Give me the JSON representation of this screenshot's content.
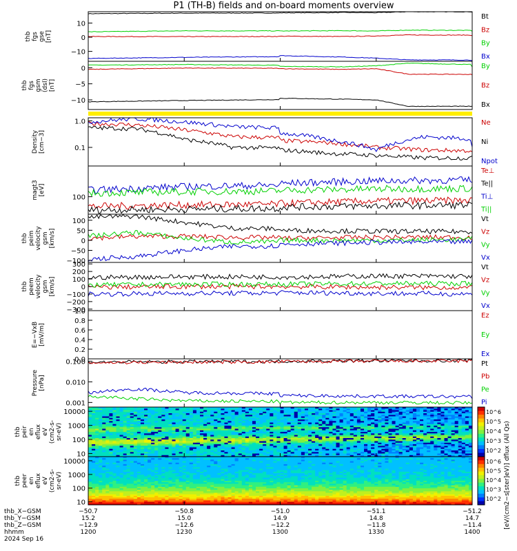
{
  "title": "P1 (TH-B) fields and on-board moments overview",
  "colors": {
    "black": "#000000",
    "red": "#cc0000",
    "green": "#00d000",
    "blue": "#0000cc",
    "yellow": "#ffee00"
  },
  "chart_data": [
    {
      "type": "line",
      "panel": "fgs-gse",
      "ylabel_lines": [
        "thb",
        "fgs",
        "gse",
        "[nT]"
      ],
      "ylim": [
        -17,
        18
      ],
      "yticks": [
        "10",
        "0",
        "−10"
      ],
      "ytick_values": [
        10,
        0,
        -10
      ],
      "series": [
        {
          "name": "Bt",
          "color": "#000000",
          "x": [
            1200,
            1230,
            1300,
            1320,
            1330,
            1340,
            1400
          ],
          "y": [
            16.6,
            17.0,
            17.2,
            17.4,
            17.3,
            18.0,
            17.9
          ]
        },
        {
          "name": "Bz",
          "color": "#cc0000",
          "x": [
            1200,
            1230,
            1300,
            1320,
            1330,
            1340,
            1400
          ],
          "y": [
            0.5,
            0.4,
            0.7,
            0.5,
            0.9,
            1.6,
            1.2
          ]
        },
        {
          "name": "By",
          "color": "#00d000",
          "x": [
            1200,
            1230,
            1300,
            1320,
            1330,
            1340,
            1400
          ],
          "y": [
            3.8,
            4.5,
            4.4,
            4.6,
            4.4,
            5.0,
            4.4
          ]
        },
        {
          "name": "Bx",
          "color": "#0000cc",
          "x": [
            1200,
            1230,
            1300,
            1320,
            1330,
            1340,
            1400
          ],
          "y": [
            -15.0,
            -14.2,
            -13.0,
            -14.0,
            -14.8,
            -16.0,
            -16.3
          ]
        }
      ]
    },
    {
      "type": "line",
      "panel": "fgs-gsm",
      "ylabel_lines": [
        "thb",
        "fgs",
        "gsm",
        "(dsl)",
        "[nT]"
      ],
      "ylim": [
        -13,
        2
      ],
      "yticks": [
        "0",
        "−5",
        "−10"
      ],
      "ytick_values": [
        0,
        -5,
        -10
      ],
      "series": [
        {
          "name": "By",
          "color": "#00d000",
          "x": [
            1200,
            1230,
            1300,
            1320,
            1330,
            1340,
            1400
          ],
          "y": [
            0.8,
            1.0,
            0.4,
            0.3,
            0.6,
            1.4,
            0.2
          ]
        },
        {
          "name": "Bz",
          "color": "#cc0000",
          "x": [
            1200,
            1230,
            1300,
            1320,
            1330,
            1340,
            1400
          ],
          "y": [
            -0.5,
            -0.1,
            -0.3,
            -0.5,
            -0.3,
            -2.0,
            -2.2
          ]
        },
        {
          "name": "Bx",
          "color": "#000000",
          "x": [
            1200,
            1230,
            1300,
            1320,
            1330,
            1340,
            1400
          ],
          "y": [
            -10.6,
            -10.2,
            -9.5,
            -9.8,
            -10.0,
            -12.0,
            -12.0
          ]
        }
      ]
    },
    {
      "type": "line",
      "panel": "density",
      "yscale": "log",
      "ylabel_lines": [
        "Density",
        "[cm−3]"
      ],
      "ylim": [
        0.02,
        1.3
      ],
      "yticks": [
        "1.0",
        "0.1"
      ],
      "ytick_values": [
        1.0,
        0.1
      ],
      "series": [
        {
          "name": "Ne",
          "color": "#cc0000",
          "x": [
            1200,
            1215,
            1230,
            1245,
            1300,
            1315,
            1330,
            1345,
            1400
          ],
          "y": [
            0.8,
            0.7,
            0.45,
            0.25,
            0.18,
            0.15,
            0.1,
            0.08,
            0.06
          ]
        },
        {
          "name": "Ni",
          "color": "#000000",
          "x": [
            1200,
            1215,
            1230,
            1245,
            1300,
            1315,
            1330,
            1345,
            1400
          ],
          "y": [
            0.55,
            0.5,
            0.2,
            0.1,
            0.08,
            0.06,
            0.05,
            0.04,
            0.04
          ]
        },
        {
          "name": "Npot",
          "color": "#0000cc",
          "x": [
            1200,
            1215,
            1230,
            1245,
            1300,
            1315,
            1330,
            1345,
            1400
          ],
          "y": [
            0.9,
            1.2,
            0.9,
            0.6,
            0.35,
            0.2,
            0.08,
            0.25,
            0.1
          ]
        }
      ]
    },
    {
      "type": "line",
      "panel": "temperature",
      "yscale": "log",
      "ylabel_lines": [
        "magt3",
        "[eV]"
      ],
      "ylim": [
        40,
        500
      ],
      "yticks": [
        "100"
      ],
      "ytick_values": [
        100
      ],
      "series": [
        {
          "name": "Te⊥",
          "color": "#cc0000",
          "x": [
            1200,
            1230,
            1300,
            1330,
            1400
          ],
          "y": [
            60,
            65,
            70,
            80,
            85
          ]
        },
        {
          "name": "Te||",
          "color": "#000000",
          "x": [
            1200,
            1230,
            1300,
            1330,
            1400
          ],
          "y": [
            50,
            52,
            58,
            62,
            68
          ]
        },
        {
          "name": "Ti⊥",
          "color": "#0000cc",
          "x": [
            1200,
            1230,
            1300,
            1330,
            1400
          ],
          "y": [
            140,
            170,
            200,
            230,
            250
          ]
        },
        {
          "name": "Ti||",
          "color": "#00d000",
          "x": [
            1200,
            1230,
            1300,
            1330,
            1400
          ],
          "y": [
            120,
            130,
            140,
            150,
            160
          ]
        }
      ]
    },
    {
      "type": "line",
      "panel": "peim-velocity",
      "ylabel_lines": [
        "thb",
        "peim",
        "velocity",
        "gsm",
        "[km/s]"
      ],
      "ylim": [
        -110,
        130
      ],
      "yticks": [
        "100",
        "50",
        "0",
        "−50",
        "−100"
      ],
      "ytick_values": [
        100,
        50,
        0,
        -50,
        -100
      ],
      "series": [
        {
          "name": "Vt",
          "color": "#000000",
          "x": [
            1200,
            1215,
            1230,
            1245,
            1300,
            1330,
            1400
          ],
          "y": [
            115,
            120,
            90,
            60,
            50,
            45,
            40
          ]
        },
        {
          "name": "Vz",
          "color": "#cc0000",
          "x": [
            1200,
            1215,
            1230,
            1245,
            1300,
            1330,
            1400
          ],
          "y": [
            10,
            20,
            20,
            15,
            10,
            15,
            15
          ]
        },
        {
          "name": "Vy",
          "color": "#00d000",
          "x": [
            1200,
            1215,
            1230,
            1245,
            1300,
            1330,
            1400
          ],
          "y": [
            20,
            40,
            10,
            -10,
            0,
            0,
            10
          ]
        },
        {
          "name": "Vx",
          "color": "#0000cc",
          "x": [
            1200,
            1215,
            1230,
            1245,
            1300,
            1330,
            1400
          ],
          "y": [
            -95,
            -80,
            -50,
            -30,
            -20,
            -10,
            -5
          ]
        }
      ]
    },
    {
      "type": "line",
      "panel": "peem-velocity",
      "ylabel_lines": [
        "thb",
        "peem",
        "velocity",
        "gsm",
        "[km/s]"
      ],
      "ylim": [
        -320,
        320
      ],
      "yticks": [
        "300",
        "200",
        "100",
        "0",
        "−100",
        "−200",
        "−300"
      ],
      "ytick_values": [
        300,
        200,
        100,
        0,
        -100,
        -200,
        -300
      ],
      "series": [
        {
          "name": "Vt",
          "color": "#000000",
          "x": [
            1200,
            1230,
            1300,
            1330,
            1400
          ],
          "y": [
            120,
            130,
            125,
            140,
            130
          ]
        },
        {
          "name": "Vz",
          "color": "#cc0000",
          "x": [
            1200,
            1230,
            1300,
            1330,
            1400
          ],
          "y": [
            -10,
            0,
            0,
            -10,
            -20
          ]
        },
        {
          "name": "Vy",
          "color": "#00d000",
          "x": [
            1200,
            1230,
            1300,
            1330,
            1400
          ],
          "y": [
            20,
            30,
            30,
            40,
            40
          ]
        },
        {
          "name": "Vx",
          "color": "#0000cc",
          "x": [
            1200,
            1230,
            1300,
            1330,
            1400
          ],
          "y": [
            -100,
            -90,
            -80,
            -90,
            -110
          ]
        }
      ]
    },
    {
      "type": "line",
      "panel": "efield",
      "ylabel_lines": [
        "E=−VxB",
        "[mV/m]"
      ],
      "ylim": [
        0,
        1
      ],
      "yticks": [
        "1.0",
        "0.8",
        "0.6",
        "0.4",
        "0.2",
        "0.0"
      ],
      "ytick_values": [
        1.0,
        0.8,
        0.6,
        0.4,
        0.2,
        0.0
      ],
      "series": [
        {
          "name": "Ez",
          "color": "#cc0000"
        },
        {
          "name": "Ey",
          "color": "#00d000"
        },
        {
          "name": "Ex",
          "color": "#0000cc"
        }
      ]
    },
    {
      "type": "line",
      "panel": "pressure",
      "yscale": "log",
      "ylabel_lines": [
        "Pressure",
        "[nPa]"
      ],
      "ylim": [
        0.0006,
        0.13
      ],
      "yticks": [
        "0.100",
        "0.010",
        "0.001"
      ],
      "ytick_values": [
        0.1,
        0.01,
        0.001
      ],
      "series": [
        {
          "name": "Pt",
          "color": "#000000",
          "x": [
            1200,
            1230,
            1300,
            1330,
            1400
          ],
          "y": [
            0.09,
            0.095,
            0.1,
            0.105,
            0.11
          ]
        },
        {
          "name": "Pb",
          "color": "#cc0000",
          "x": [
            1200,
            1230,
            1300,
            1330,
            1400
          ],
          "y": [
            0.085,
            0.09,
            0.095,
            0.1,
            0.105
          ]
        },
        {
          "name": "Pe",
          "color": "#00d000",
          "x": [
            1200,
            1215,
            1230,
            1300,
            1330,
            1400
          ],
          "y": [
            0.002,
            0.0015,
            0.0012,
            0.001,
            0.001,
            0.0009
          ]
        },
        {
          "name": "Pi",
          "color": "#0000cc",
          "x": [
            1200,
            1215,
            1230,
            1300,
            1330,
            1400
          ],
          "y": [
            0.003,
            0.0045,
            0.003,
            0.0022,
            0.002,
            0.0018
          ]
        }
      ]
    },
    {
      "type": "heatmap",
      "panel": "peir-spectrogram",
      "yscale": "log",
      "ylabel_lines": [
        "thb",
        "peir",
        "en",
        "eflux",
        "eV",
        "(cm2-s-",
        "sr-eV)"
      ],
      "ylim": [
        6,
        20000
      ],
      "yticks": [
        "10000",
        "1000",
        "100",
        "10"
      ],
      "ytick_values": [
        10000,
        1000,
        100,
        10
      ],
      "colorbar_ticks": [
        "10^6",
        "10^5",
        "10^4",
        "10^3",
        "10^2"
      ]
    },
    {
      "type": "heatmap",
      "panel": "peer-spectrogram",
      "yscale": "log",
      "ylabel_lines": [
        "thb",
        "peer",
        "en",
        "eflux",
        "eV",
        "(cm2-s-",
        "sr-eV)"
      ],
      "ylim": [
        6,
        20000
      ],
      "yticks": [
        "10000",
        "1000",
        "100",
        "10"
      ],
      "ytick_values": [
        10000,
        1000,
        100,
        10
      ],
      "colorbar_ticks": [
        "10^6",
        "10^5",
        "10^4",
        "10^3",
        "10^2"
      ]
    }
  ],
  "colorbar_label": "[eV/(cm2−s[ster]eV)] dflux (All Qs)",
  "xaxis": {
    "rows": [
      {
        "label": "thb_X−GSM",
        "values": [
          "−50.7",
          "−50.8",
          "−51.0",
          "−51.1",
          "−51.2"
        ]
      },
      {
        "label": "thb_Y−GSM",
        "values": [
          "15.2",
          "15.0",
          "14.9",
          "14.8",
          "14.7"
        ]
      },
      {
        "label": "thb_Z−GSM",
        "values": [
          "−12.9",
          "−12.6",
          "−12.2",
          "−11.8",
          "−11.4"
        ]
      },
      {
        "label": "hhmm",
        "values": [
          "1200",
          "1230",
          "1300",
          "1330",
          "1400"
        ]
      }
    ],
    "date": "2024 Sep 16"
  }
}
